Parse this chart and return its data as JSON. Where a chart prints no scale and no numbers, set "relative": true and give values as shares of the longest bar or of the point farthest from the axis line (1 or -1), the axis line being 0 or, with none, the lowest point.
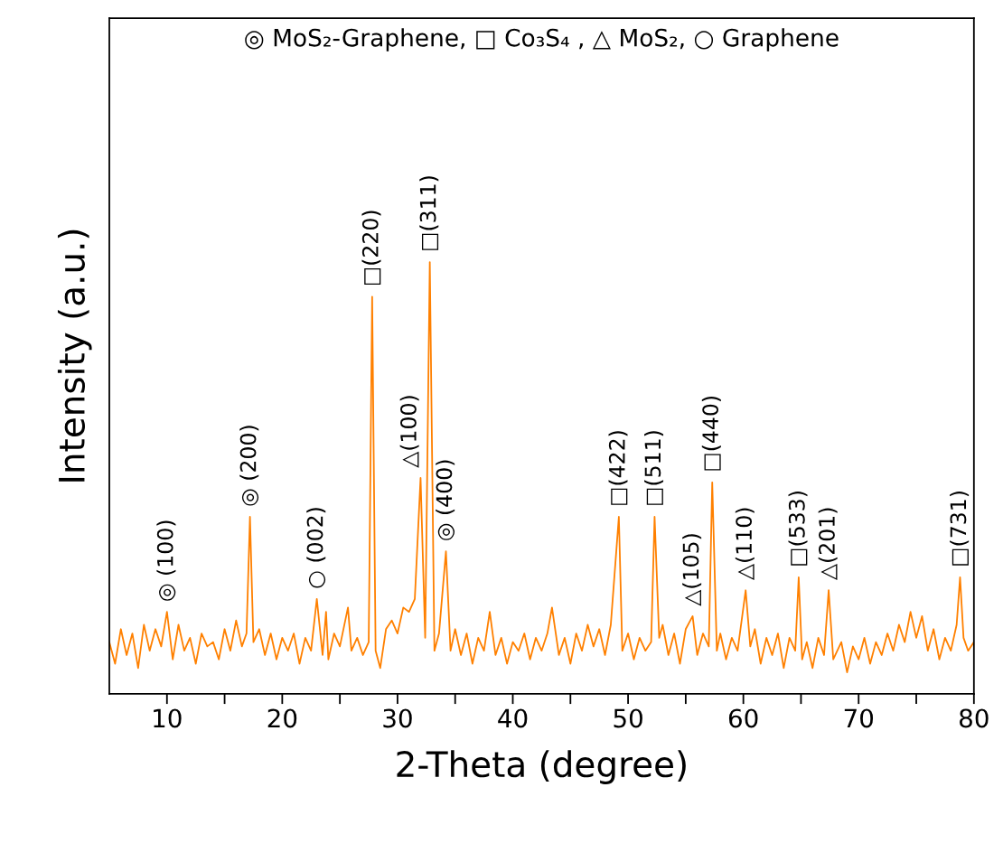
{
  "chart_data": {
    "type": "line",
    "relative": true,
    "xlabel": "2-Theta (degree)",
    "ylabel": "Intensity (a.u.)",
    "xlim": [
      5,
      80
    ],
    "xticks": [
      10,
      {
        "value": 15,
        "label": null
      },
      20,
      {
        "value": 25,
        "label": null
      },
      30,
      {
        "value": 35,
        "label": null
      },
      40,
      {
        "value": 45,
        "label": null
      },
      50,
      {
        "value": 55,
        "label": null
      },
      60,
      {
        "value": 65,
        "label": null
      },
      70,
      {
        "value": 75,
        "label": null
      },
      80
    ],
    "tick_labels": "x",
    "grid": false,
    "legend": false,
    "series": [
      {
        "color": "#ff8000",
        "x": [
          5.0,
          5.5,
          6.0,
          6.5,
          7.0,
          7.5,
          8.0,
          8.5,
          9.0,
          9.5,
          10.0,
          10.5,
          11.0,
          11.5,
          12.0,
          12.5,
          13.0,
          13.5,
          14.0,
          14.5,
          15.0,
          15.5,
          16.0,
          16.5,
          16.9,
          17.2,
          17.5,
          18.0,
          18.5,
          19.0,
          19.5,
          20.0,
          20.5,
          21.0,
          21.5,
          22.0,
          22.5,
          23.0,
          23.5,
          23.8,
          24.0,
          24.5,
          25.0,
          25.7,
          26.0,
          26.5,
          27.0,
          27.5,
          27.8,
          28.1,
          28.5,
          29.0,
          29.5,
          30.0,
          30.5,
          31.0,
          31.5,
          32.0,
          32.4,
          32.8,
          33.2,
          33.6,
          34.2,
          34.6,
          35.0,
          35.5,
          36.0,
          36.5,
          37.0,
          37.5,
          38.0,
          38.5,
          39.0,
          39.5,
          40.0,
          40.5,
          41.0,
          41.5,
          42.0,
          42.5,
          43.0,
          43.4,
          44.0,
          44.5,
          45.0,
          45.5,
          46.0,
          46.5,
          47.0,
          47.5,
          48.0,
          48.5,
          49.2,
          49.5,
          50.0,
          50.5,
          51.0,
          51.5,
          52.0,
          52.3,
          52.7,
          53.0,
          53.5,
          54.0,
          54.5,
          55.0,
          55.6,
          56.0,
          56.5,
          57.0,
          57.3,
          57.7,
          58.0,
          58.5,
          59.0,
          59.5,
          60.2,
          60.6,
          61.0,
          61.5,
          62.0,
          62.5,
          63.0,
          63.5,
          64.0,
          64.5,
          64.8,
          65.1,
          65.5,
          66.0,
          66.5,
          67.0,
          67.4,
          67.8,
          68.5,
          69.0,
          69.5,
          70.0,
          70.5,
          71.0,
          71.5,
          72.0,
          72.5,
          73.0,
          73.5,
          74.0,
          74.5,
          75.0,
          75.5,
          76.0,
          76.5,
          77.0,
          77.5,
          78.0,
          78.5,
          78.8,
          79.1,
          79.5,
          80.0
        ],
        "values": [
          0.12,
          0.07,
          0.15,
          0.09,
          0.14,
          0.06,
          0.16,
          0.1,
          0.15,
          0.11,
          0.19,
          0.08,
          0.16,
          0.1,
          0.13,
          0.07,
          0.14,
          0.11,
          0.12,
          0.08,
          0.15,
          0.1,
          0.17,
          0.11,
          0.14,
          0.41,
          0.12,
          0.15,
          0.09,
          0.14,
          0.08,
          0.13,
          0.1,
          0.14,
          0.07,
          0.13,
          0.1,
          0.22,
          0.09,
          0.19,
          0.08,
          0.14,
          0.11,
          0.2,
          0.1,
          0.13,
          0.09,
          0.12,
          0.92,
          0.1,
          0.06,
          0.15,
          0.17,
          0.14,
          0.2,
          0.19,
          0.22,
          0.5,
          0.13,
          1.0,
          0.1,
          0.14,
          0.33,
          0.1,
          0.15,
          0.09,
          0.14,
          0.07,
          0.13,
          0.1,
          0.19,
          0.09,
          0.13,
          0.07,
          0.12,
          0.1,
          0.14,
          0.08,
          0.13,
          0.1,
          0.14,
          0.2,
          0.09,
          0.13,
          0.07,
          0.14,
          0.1,
          0.16,
          0.11,
          0.15,
          0.09,
          0.16,
          0.41,
          0.1,
          0.14,
          0.08,
          0.13,
          0.1,
          0.12,
          0.41,
          0.13,
          0.16,
          0.09,
          0.14,
          0.07,
          0.15,
          0.18,
          0.09,
          0.14,
          0.11,
          0.49,
          0.1,
          0.14,
          0.08,
          0.13,
          0.1,
          0.24,
          0.11,
          0.15,
          0.07,
          0.13,
          0.09,
          0.14,
          0.06,
          0.13,
          0.1,
          0.27,
          0.08,
          0.12,
          0.06,
          0.13,
          0.09,
          0.24,
          0.08,
          0.12,
          0.05,
          0.11,
          0.08,
          0.13,
          0.07,
          0.12,
          0.09,
          0.14,
          0.1,
          0.16,
          0.12,
          0.19,
          0.13,
          0.18,
          0.1,
          0.15,
          0.08,
          0.13,
          0.1,
          0.16,
          0.27,
          0.13,
          0.1,
          0.12
        ]
      }
    ],
    "annotations": [
      "◎ MoS₂-Graphene, □ Co₃S₄ , △ MoS₂, ○ Graphene",
      {
        "text": "◎ (100)",
        "x": 10.0,
        "y": 0.19
      },
      {
        "text": "◎ (200)",
        "x": 17.2,
        "y": 0.41
      },
      {
        "text": "○ (002)",
        "x": 23.0,
        "y": 0.22
      },
      {
        "text": "□(220)",
        "x": 27.8,
        "y": 0.92
      },
      {
        "text": "△(100)",
        "x": 32.0,
        "y": 0.5
      },
      {
        "text": "□(311)",
        "x": 32.8,
        "y": 1.0
      },
      {
        "text": "◎ (400)",
        "x": 34.2,
        "y": 0.33
      },
      {
        "text": "□(422)",
        "x": 49.2,
        "y": 0.41
      },
      {
        "text": "□(511)",
        "x": 52.3,
        "y": 0.41
      },
      {
        "text": "△(105)",
        "x": 55.6,
        "y": 0.18
      },
      {
        "text": "□(440)",
        "x": 57.3,
        "y": 0.49
      },
      {
        "text": "△(110)",
        "x": 60.2,
        "y": 0.24
      },
      {
        "text": "□(533)",
        "x": 64.8,
        "y": 0.27
      },
      {
        "text": "△(201)",
        "x": 67.4,
        "y": 0.24
      },
      {
        "text": "□(731)",
        "x": 78.8,
        "y": 0.27
      }
    ]
  }
}
